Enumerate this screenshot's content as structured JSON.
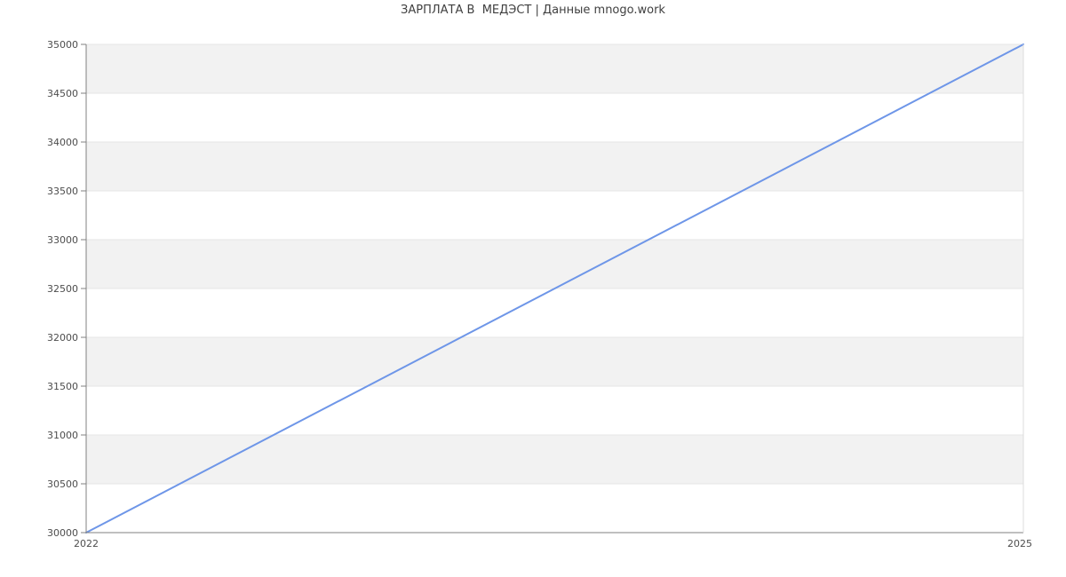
{
  "title": "ЗАРПЛАТА В  МЕДЭСТ | Данные mnogo.work",
  "colors": {
    "line": "#6e96e8",
    "band_gray": "#f2f2f2",
    "band_white": "#ffffff",
    "gridline": "#e6e6e6",
    "axis": "#808080",
    "right_border": "#dcdcdc",
    "tick_label": "#4d4d4d",
    "title_text": "#3f3f3f",
    "background": "#ffffff"
  },
  "chart_data": {
    "type": "line",
    "title": "ЗАРПЛАТА В  МЕДЭСТ | Данные mnogo.work",
    "x": [
      2022,
      2025
    ],
    "values": [
      30000,
      35000
    ],
    "xlim": [
      2022,
      2025
    ],
    "ylim": [
      30000,
      35000
    ],
    "y_tick_step": 500,
    "y_tick_labels": [
      "30000",
      "30500",
      "31000",
      "31500",
      "32000",
      "32500",
      "33000",
      "33500",
      "34000",
      "34500",
      "35000"
    ],
    "x_tick_labels": [
      "2022",
      "2025"
    ],
    "grid": "horizontal-on",
    "alternating_bands": true,
    "legend_position": "none",
    "xlabel": "",
    "ylabel": ""
  }
}
